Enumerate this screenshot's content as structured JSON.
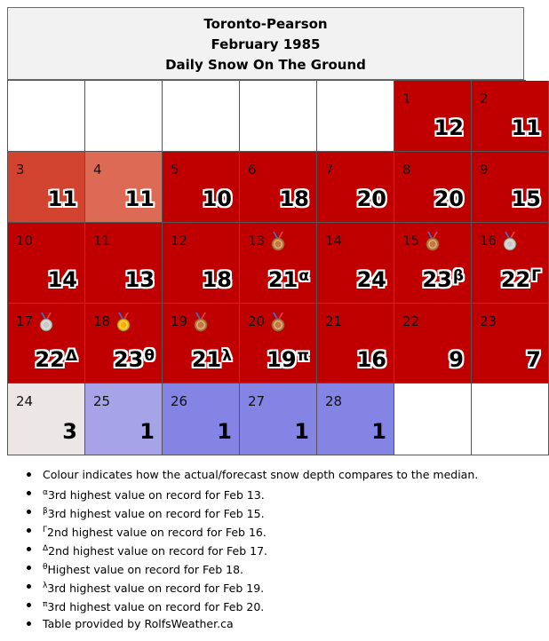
{
  "header": {
    "station": "Toronto-Pearson",
    "month": "February 1985",
    "subject": "Daily Snow On The Ground"
  },
  "colors": {
    "empty": "#ffffff",
    "above_median_strong": "#c00000",
    "above_median_mid": "#d24430",
    "above_median_light": "#dd6a55",
    "near_median": "#ece6e6",
    "below_median_light": "#a6a3e8",
    "below_median": "#8484e4",
    "medal_gold": "#f0b400",
    "medal_silver": "#c9c9c9",
    "medal_bronze": "#c27a3f",
    "ribbon": "#3d70c4"
  },
  "calendar": {
    "leading_blank_cells": 5,
    "trailing_blank_cells": 2,
    "days": [
      {
        "day": "1",
        "value": "12",
        "color": "#c00000"
      },
      {
        "day": "2",
        "value": "11",
        "color": "#c00000"
      },
      {
        "day": "3",
        "value": "11",
        "color": "#d24430"
      },
      {
        "day": "4",
        "value": "11",
        "color": "#dd6a55"
      },
      {
        "day": "5",
        "value": "10",
        "color": "#c00000"
      },
      {
        "day": "6",
        "value": "18",
        "color": "#c00000"
      },
      {
        "day": "7",
        "value": "20",
        "color": "#c00000"
      },
      {
        "day": "8",
        "value": "20",
        "color": "#c00000"
      },
      {
        "day": "9",
        "value": "15",
        "color": "#c00000"
      },
      {
        "day": "10",
        "value": "14",
        "color": "#c00000"
      },
      {
        "day": "11",
        "value": "13",
        "color": "#c00000"
      },
      {
        "day": "12",
        "value": "18",
        "color": "#c00000"
      },
      {
        "day": "13",
        "value": "21",
        "marker": "α",
        "medal": "bronze",
        "color": "#c00000"
      },
      {
        "day": "14",
        "value": "24",
        "color": "#c00000"
      },
      {
        "day": "15",
        "value": "23",
        "marker": "β",
        "medal": "bronze",
        "color": "#c00000"
      },
      {
        "day": "16",
        "value": "22",
        "marker": "Γ",
        "medal": "silver",
        "color": "#c00000"
      },
      {
        "day": "17",
        "value": "22",
        "marker": "Δ",
        "medal": "silver",
        "color": "#c00000"
      },
      {
        "day": "18",
        "value": "23",
        "marker": "θ",
        "medal": "gold",
        "color": "#c00000"
      },
      {
        "day": "19",
        "value": "21",
        "marker": "λ",
        "medal": "bronze",
        "color": "#c00000"
      },
      {
        "day": "20",
        "value": "19",
        "marker": "π",
        "medal": "bronze",
        "color": "#c00000"
      },
      {
        "day": "21",
        "value": "16",
        "color": "#c00000"
      },
      {
        "day": "22",
        "value": "9",
        "color": "#c00000"
      },
      {
        "day": "23",
        "value": "7",
        "color": "#c00000"
      },
      {
        "day": "24",
        "value": "3",
        "color": "#ece6e6",
        "plain": true
      },
      {
        "day": "25",
        "value": "1",
        "color": "#a6a3e8",
        "plain": true
      },
      {
        "day": "26",
        "value": "1",
        "color": "#8484e4",
        "plain": true
      },
      {
        "day": "27",
        "value": "1",
        "color": "#8484e4",
        "plain": true
      },
      {
        "day": "28",
        "value": "1",
        "color": "#8484e4",
        "plain": true
      }
    ]
  },
  "notes": [
    {
      "marker": "",
      "text": "Colour indicates how the actual/forecast snow depth compares to the median."
    },
    {
      "marker": "α",
      "text": "3rd highest value on record for Feb 13."
    },
    {
      "marker": "β",
      "text": "3rd highest value on record for Feb 15."
    },
    {
      "marker": "Γ",
      "text": "2nd highest value on record for Feb 16."
    },
    {
      "marker": "Δ",
      "text": "2nd highest value on record for Feb 17."
    },
    {
      "marker": "θ",
      "text": "Highest value on record for Feb 18."
    },
    {
      "marker": "λ",
      "text": "3rd highest value on record for Feb 19."
    },
    {
      "marker": "π",
      "text": "3rd highest value on record for Feb 20."
    },
    {
      "marker": "",
      "text": "Table provided by RolfsWeather.ca"
    }
  ]
}
